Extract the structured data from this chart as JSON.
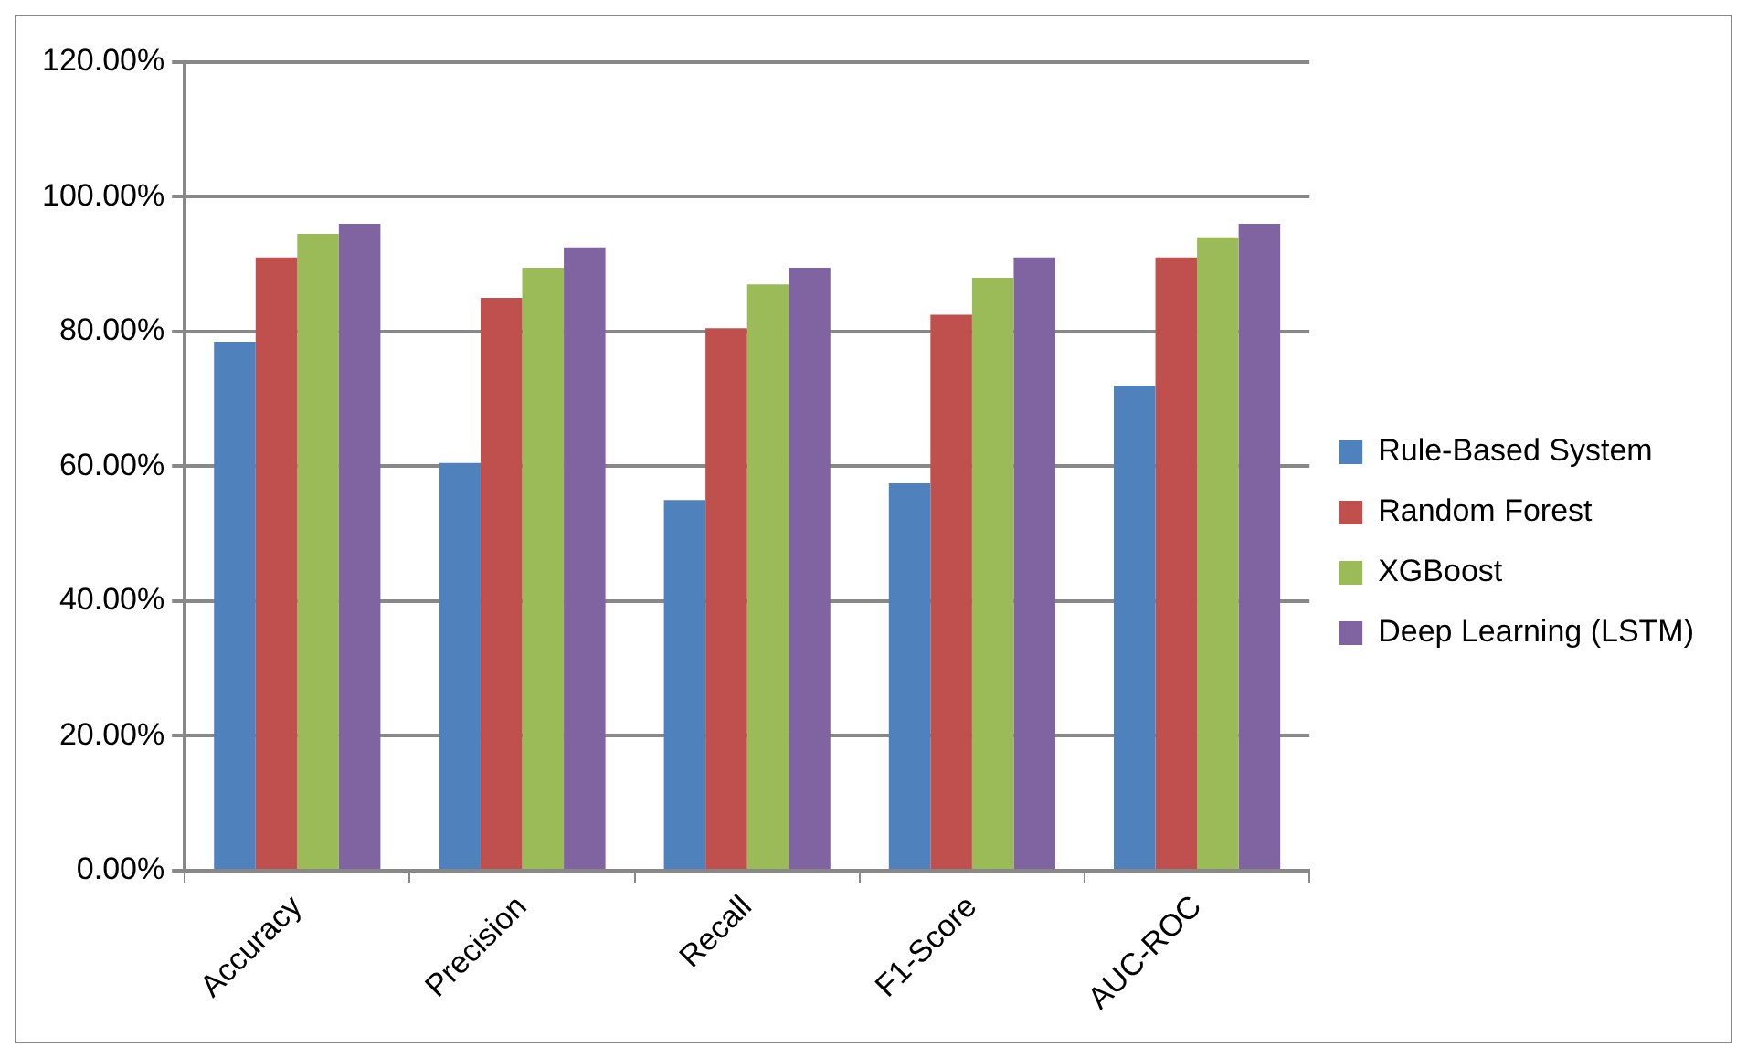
{
  "chart_data": {
    "type": "bar",
    "categories": [
      "Accuracy",
      "Precision",
      "Recall",
      "F1-Score",
      "AUC-ROC"
    ],
    "series": [
      {
        "name": "Rule-Based System",
        "color": "#4f81bd",
        "values": [
          78.5,
          60.5,
          55,
          57.5,
          72
        ]
      },
      {
        "name": "Random Forest",
        "color": "#c0504d",
        "values": [
          91,
          85,
          80.5,
          82.5,
          91
        ]
      },
      {
        "name": "XGBoost",
        "color": "#9bbb59",
        "values": [
          94.5,
          89.5,
          87,
          88,
          94
        ]
      },
      {
        "name": "Deep Learning (LSTM)",
        "color": "#8064a2",
        "values": [
          96,
          92.5,
          89.5,
          91,
          96
        ]
      }
    ],
    "ylim": [
      0,
      120
    ],
    "yticks": [
      {
        "value": 0,
        "label": "0.00%"
      },
      {
        "value": 20,
        "label": "20.00%"
      },
      {
        "value": 40,
        "label": "40.00%"
      },
      {
        "value": 60,
        "label": "60.00%"
      },
      {
        "value": 80,
        "label": "80.00%"
      },
      {
        "value": 100,
        "label": "100.00%"
      },
      {
        "value": 120,
        "label": "120.00%"
      }
    ],
    "grid": "y",
    "legend": "right"
  }
}
